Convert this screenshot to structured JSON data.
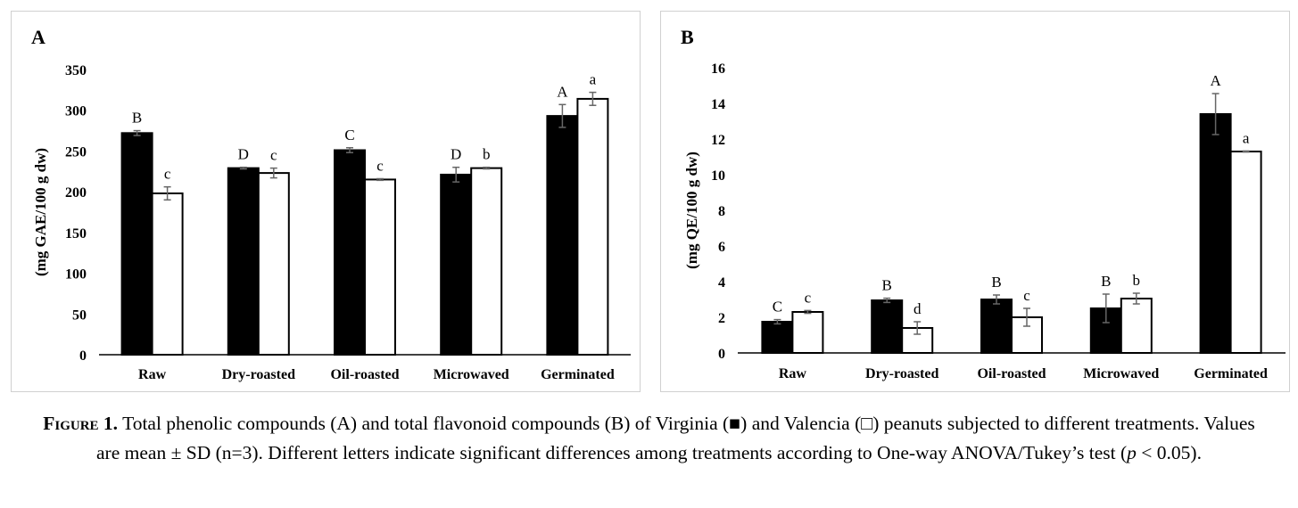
{
  "chart_data": [
    {
      "id": "A",
      "type": "bar",
      "panel_label": "A",
      "categories": [
        "Raw",
        "Dry-roasted",
        "Oil-roasted",
        "Microwaved",
        "Germinated"
      ],
      "ylabel": "(mg GAE/100 g dw)",
      "ylim": [
        0,
        350
      ],
      "yticks": [
        0,
        50,
        100,
        150,
        200,
        250,
        300,
        350
      ],
      "grid": false,
      "legend": "none",
      "series": [
        {
          "fill": "#000000",
          "values": [
            272,
            229,
            251,
            221,
            293
          ],
          "errors": [
            3,
            1,
            3,
            9,
            14
          ],
          "letters": [
            "B",
            "D",
            "C",
            "D",
            "A"
          ]
        },
        {
          "fill": "#ffffff",
          "values": [
            198,
            223,
            215,
            229,
            314
          ],
          "errors": [
            8,
            6,
            1,
            1,
            8
          ],
          "letters": [
            "c",
            "c",
            "c",
            "b",
            "a"
          ]
        }
      ]
    },
    {
      "id": "B",
      "type": "bar",
      "panel_label": "B",
      "categories": [
        "Raw",
        "Dry-roasted",
        "Oil-roasted",
        "Microwaved",
        "Germinated"
      ],
      "ylabel": "(mg QE/100 g dw)",
      "ylim": [
        0,
        16
      ],
      "yticks": [
        0,
        2,
        4,
        6,
        8,
        10,
        12,
        14,
        16
      ],
      "grid": false,
      "legend": "none",
      "series": [
        {
          "fill": "#000000",
          "values": [
            1.75,
            2.95,
            3.0,
            2.5,
            13.4
          ],
          "errors": [
            0.12,
            0.12,
            0.25,
            0.8,
            1.15
          ],
          "letters": [
            "C",
            "B",
            "B",
            "B",
            "A"
          ]
        },
        {
          "fill": "#ffffff",
          "values": [
            2.3,
            1.4,
            2.0,
            3.05,
            11.3
          ],
          "errors": [
            0.08,
            0.35,
            0.5,
            0.3,
            0.03
          ],
          "letters": [
            "c",
            "d",
            "c",
            "b",
            "a"
          ]
        }
      ]
    }
  ],
  "caption": {
    "label": "Figure 1.",
    "text": "Total phenolic compounds (A) and total flavonoid compounds (B) of Virginia (■) and Valencia (□) peanuts subjected to different treatments. Values are mean ± SD (n=3). Different letters indicate significant differences among treatments according to One-way ANOVA/Tukey’s test (",
    "p_symbol": "p",
    "p_text": " < 0.05)."
  },
  "colors": {
    "virginia_bar": "#000000",
    "valencia_bar": "#ffffff",
    "outline": "#000000",
    "error_bar": "#666666"
  }
}
